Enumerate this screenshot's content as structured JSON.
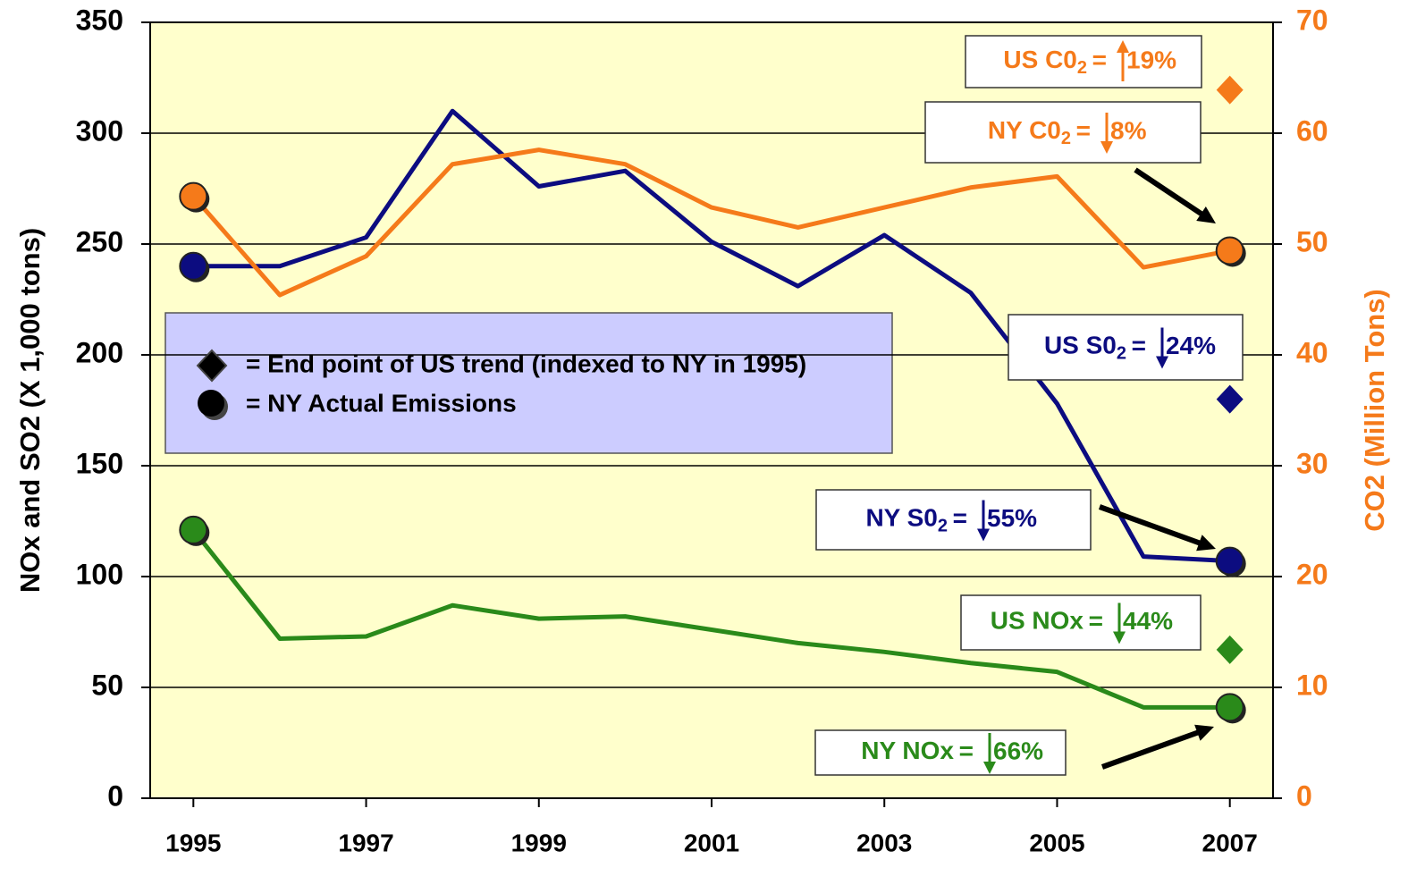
{
  "chart_data": {
    "type": "line",
    "y_axis_label": "NOx and SO2 (X 1,000 tons)",
    "y2_axis_label": "CO2 (Million Tons)",
    "x": [
      1995,
      1996,
      1997,
      1998,
      1999,
      2000,
      2001,
      2002,
      2003,
      2004,
      2005,
      2006,
      2007
    ],
    "xlim": [
      1994.5,
      2007.5
    ],
    "xticks": [
      1995,
      1997,
      1999,
      2001,
      2003,
      2005,
      2007
    ],
    "ylim": [
      0,
      350
    ],
    "yticks": [
      0,
      50,
      100,
      150,
      200,
      250,
      300,
      350
    ],
    "y2lim": [
      0,
      70
    ],
    "y2ticks": [
      0,
      10,
      20,
      30,
      40,
      50,
      60,
      70
    ],
    "grid": true,
    "series": [
      {
        "color": "#0c0c80",
        "values": [
          240,
          240,
          253,
          310,
          276,
          283,
          251,
          231,
          254,
          228,
          178,
          109,
          107
        ]
      },
      {
        "color": "#2a8a1a",
        "values": [
          121,
          72,
          73,
          87,
          81,
          82,
          76,
          70,
          66,
          61,
          57,
          41,
          41
        ]
      },
      {
        "color": "#f57a1a",
        "axis": "y2",
        "values": [
          54.3,
          45.4,
          48.9,
          57.2,
          58.5,
          57.2,
          53.3,
          51.5,
          53.3,
          55.1,
          56.1,
          47.9,
          49.4
        ]
      }
    ],
    "endpoints": [
      {
        "color": "#f57a1a",
        "axis": "y2",
        "value": 63.9
      },
      {
        "color": "#0c0c80",
        "value": 180
      },
      {
        "color": "#2a8a1a",
        "value": 67
      }
    ],
    "legend": [
      {
        "label": "= End point of US trend (indexed to NY in 1995)"
      },
      {
        "label": "= NY Actual Emissions"
      }
    ],
    "annotations": [
      {
        "prefix": "US C0",
        "sub": "2",
        "eq": "=",
        "direction": "up",
        "pct": "19%",
        "color": "#f57a1a"
      },
      {
        "prefix": "NY C0",
        "sub": "2",
        "eq": "=",
        "direction": "down",
        "pct": "8%",
        "color": "#f57a1a"
      },
      {
        "prefix": "US S0",
        "sub": "2",
        "eq": "=",
        "direction": "down",
        "pct": "24%",
        "color": "#0c0c80"
      },
      {
        "prefix": "NY S0",
        "sub": "2",
        "eq": "=",
        "direction": "down",
        "pct": "55%",
        "color": "#0c0c80"
      },
      {
        "prefix": "US NOx",
        "eq": "=",
        "direction": "down",
        "pct": "44%",
        "color": "#2a8a1a"
      },
      {
        "prefix": "NY NOx",
        "eq": "=",
        "direction": "down",
        "pct": "66%",
        "color": "#2a8a1a"
      }
    ]
  }
}
